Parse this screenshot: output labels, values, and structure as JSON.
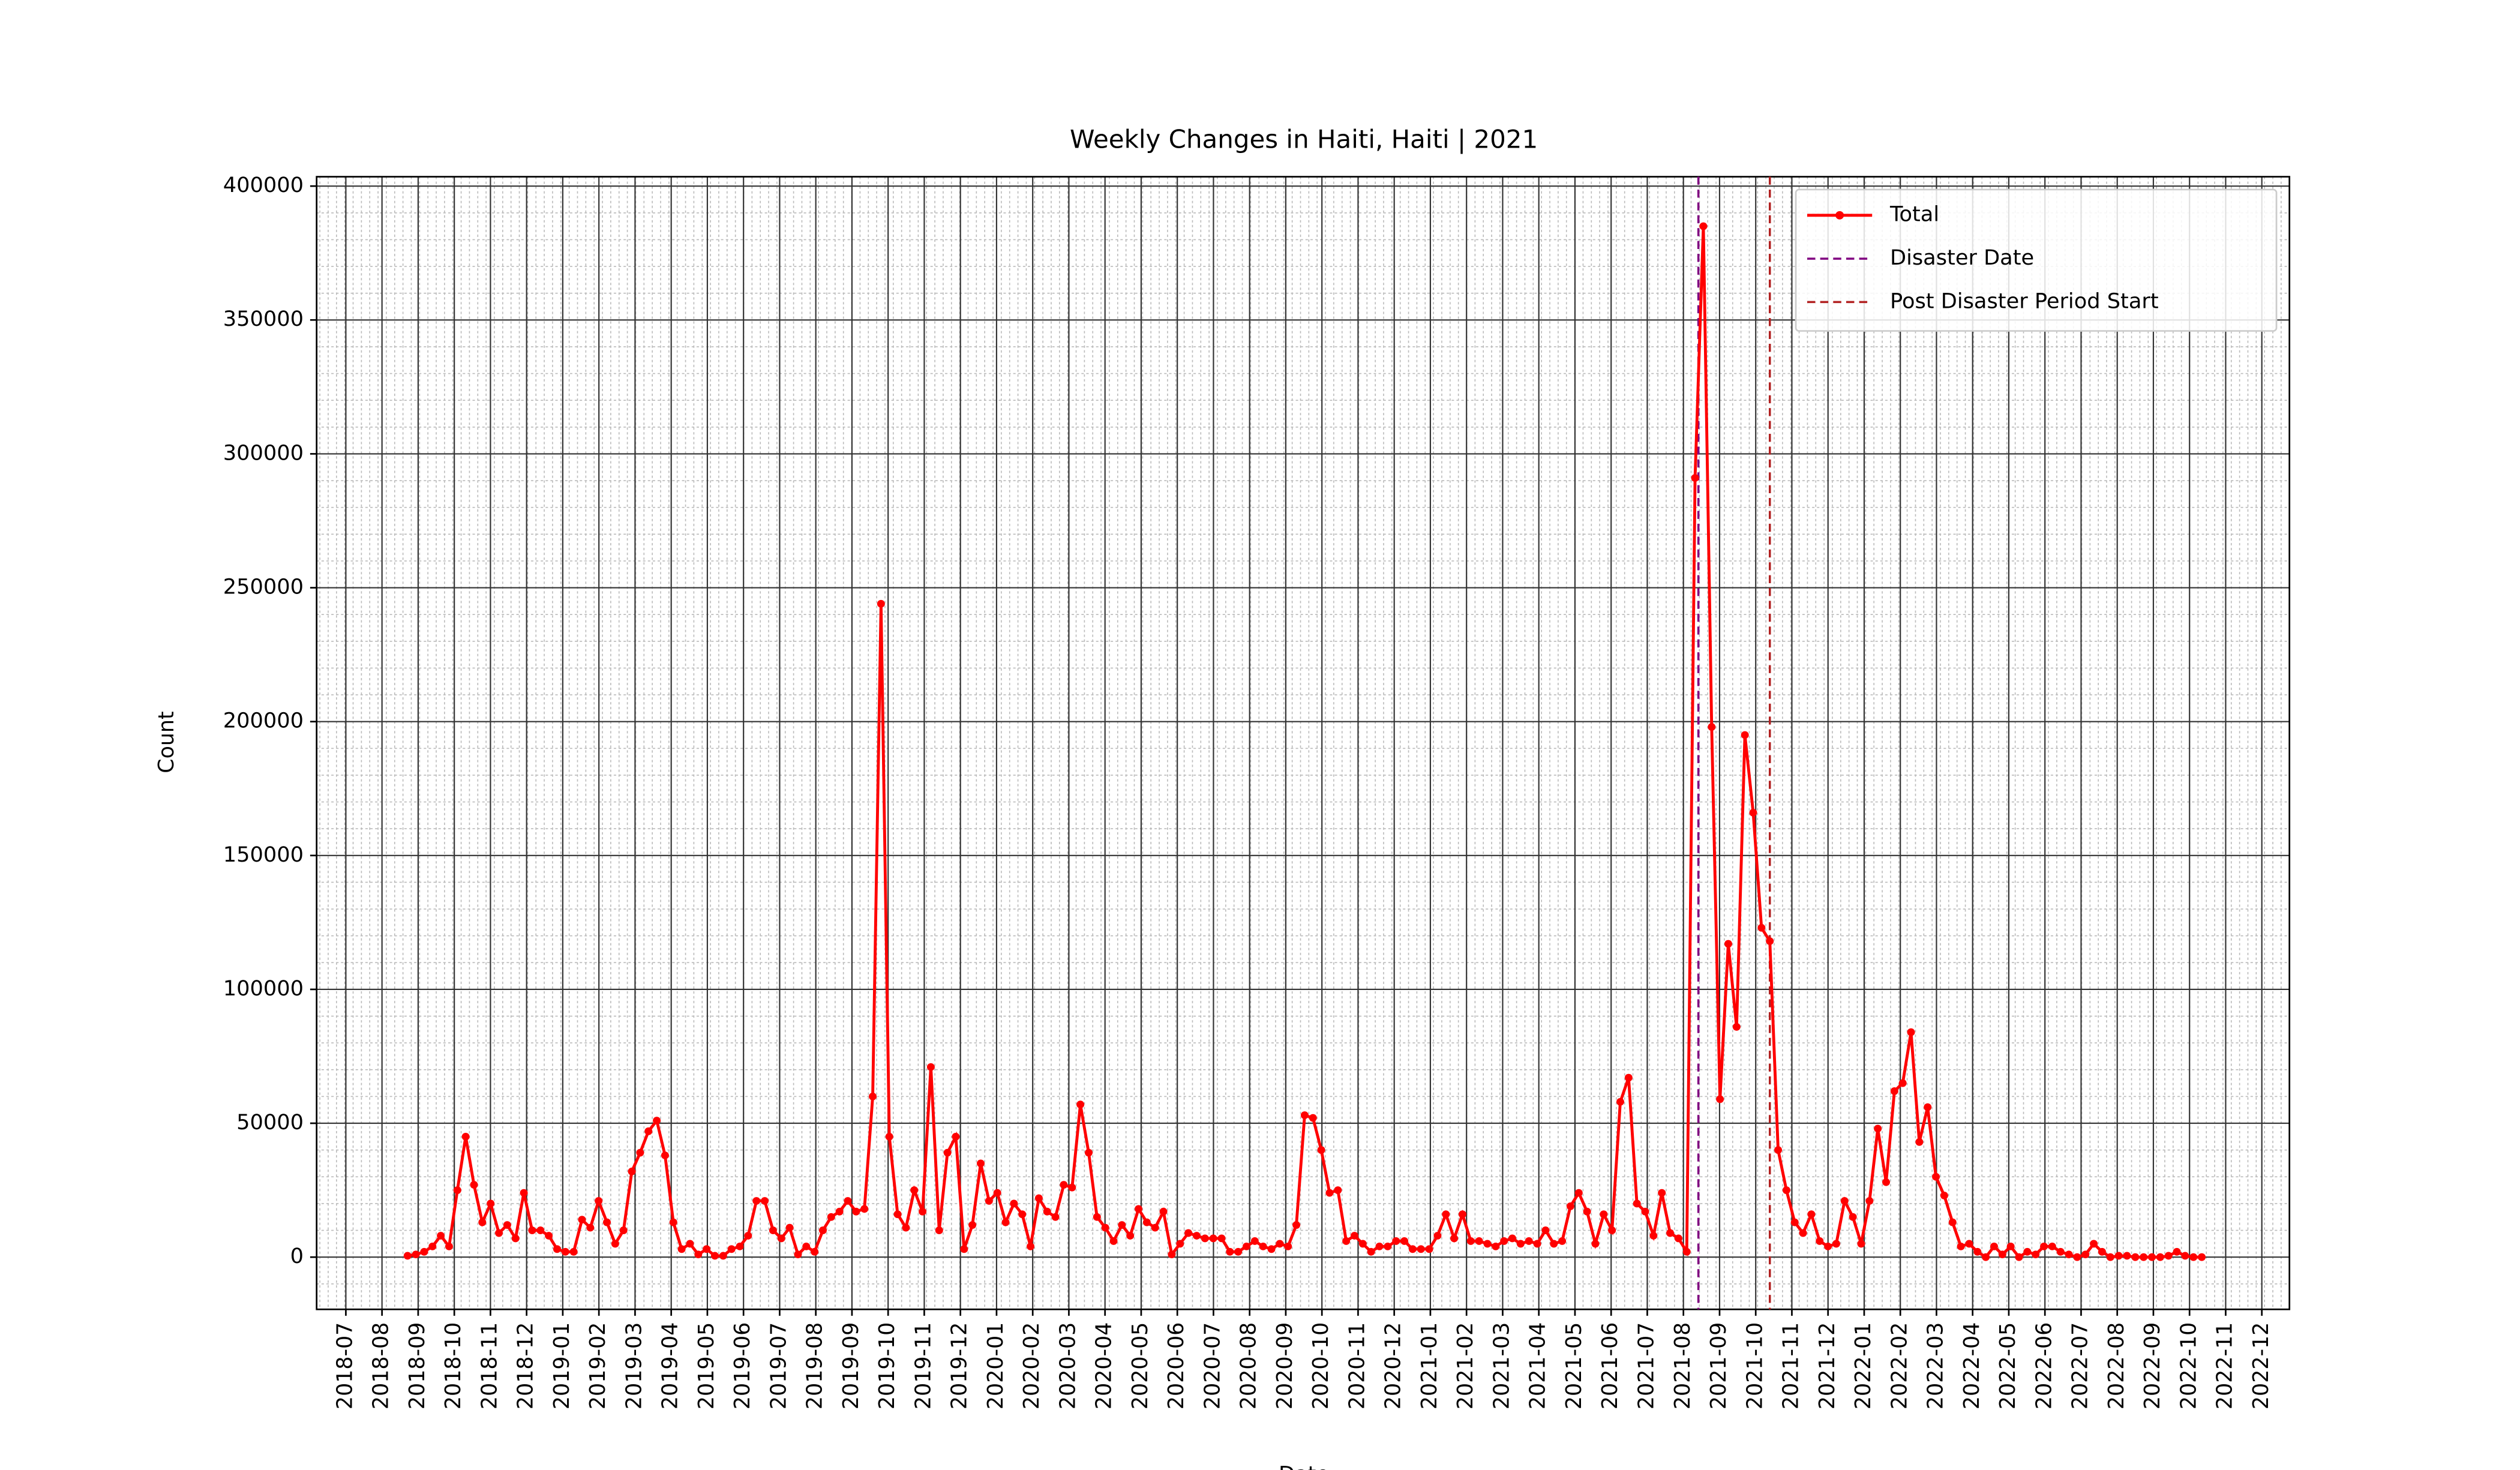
{
  "chart_data": {
    "type": "line",
    "title": "Weekly Changes in Haiti, Haiti | 2021",
    "xlabel": "Date",
    "ylabel": "Count",
    "xticks": [
      "2018-07",
      "2018-08",
      "2018-09",
      "2018-10",
      "2018-11",
      "2018-12",
      "2019-01",
      "2019-02",
      "2019-03",
      "2019-04",
      "2019-05",
      "2019-06",
      "2019-07",
      "2019-08",
      "2019-09",
      "2019-10",
      "2019-11",
      "2019-12",
      "2020-01",
      "2020-02",
      "2020-03",
      "2020-04",
      "2020-05",
      "2020-06",
      "2020-07",
      "2020-08",
      "2020-09",
      "2020-10",
      "2020-11",
      "2020-12",
      "2021-01",
      "2021-02",
      "2021-03",
      "2021-04",
      "2021-05",
      "2021-06",
      "2021-07",
      "2021-08",
      "2021-09",
      "2021-10",
      "2021-11",
      "2021-12",
      "2022-01",
      "2022-02",
      "2022-03",
      "2022-04",
      "2022-05",
      "2022-06",
      "2022-07",
      "2022-08",
      "2022-09",
      "2022-10",
      "2022-11",
      "2022-12"
    ],
    "ylim": [
      -19500,
      403500
    ],
    "yticks": [
      0,
      50000,
      100000,
      150000,
      200000,
      250000,
      300000,
      350000,
      400000
    ],
    "grid": true,
    "legend": "upper right",
    "series": [
      {
        "name": "Total",
        "color": "#ff0000",
        "values": [
          500,
          1000,
          2000,
          4000,
          8000,
          4000,
          25000,
          45000,
          27000,
          13000,
          20000,
          9000,
          12000,
          7000,
          24000,
          10000,
          10000,
          8000,
          3000,
          2000,
          2000,
          14000,
          11000,
          21000,
          13000,
          5000,
          10000,
          32000,
          39000,
          47000,
          51000,
          38000,
          13000,
          3000,
          5000,
          1000,
          3000,
          500,
          500,
          3000,
          4000,
          8000,
          21000,
          21000,
          10000,
          7000,
          11000,
          1000,
          4000,
          2000,
          10000,
          15000,
          17000,
          21000,
          17000,
          18000,
          60000,
          244000,
          45000,
          16000,
          11000,
          25000,
          17000,
          71000,
          10000,
          39000,
          45000,
          3000,
          12000,
          35000,
          21000,
          24000,
          13000,
          20000,
          16000,
          4000,
          22000,
          17000,
          15000,
          27000,
          26000,
          57000,
          39000,
          15000,
          11000,
          6000,
          12000,
          8000,
          18000,
          13000,
          11000,
          17000,
          1000,
          5000,
          9000,
          8000,
          7000,
          7000,
          7000,
          2000,
          2000,
          4000,
          6000,
          4000,
          3000,
          5000,
          4000,
          12000,
          53000,
          52000,
          40000,
          24000,
          25000,
          6000,
          8000,
          5000,
          2000,
          4000,
          4000,
          6000,
          6000,
          3000,
          3000,
          3000,
          8000,
          16000,
          7000,
          16000,
          6000,
          6000,
          5000,
          4000,
          6000,
          7000,
          5000,
          6000,
          5000,
          10000,
          5000,
          6000,
          19000,
          24000,
          17000,
          5000,
          16000,
          10000,
          58000,
          67000,
          20000,
          17000,
          8000,
          24000,
          9000,
          7000,
          2000,
          291000,
          385000,
          198000,
          59000,
          117000,
          86000,
          195000,
          166000,
          123000,
          118000,
          40000,
          25000,
          13000,
          9000,
          16000,
          6000,
          4000,
          5000,
          21000,
          15000,
          5000,
          21000,
          48000,
          28000,
          62000,
          65000,
          84000,
          43000,
          56000,
          30000,
          23000,
          13000,
          4000,
          5000,
          2000,
          0,
          4000,
          1000,
          4000,
          0,
          2000,
          1000,
          4000,
          4000,
          2000,
          1000,
          0,
          1000,
          5000,
          2000,
          0,
          500,
          500,
          0,
          0,
          0,
          0,
          500,
          2000,
          500,
          0,
          0
        ]
      }
    ],
    "vlines": [
      {
        "name": "Disaster Date",
        "color": "#800080"
      },
      {
        "name": "Post Disaster Period Start",
        "color": "#b22222"
      }
    ]
  }
}
